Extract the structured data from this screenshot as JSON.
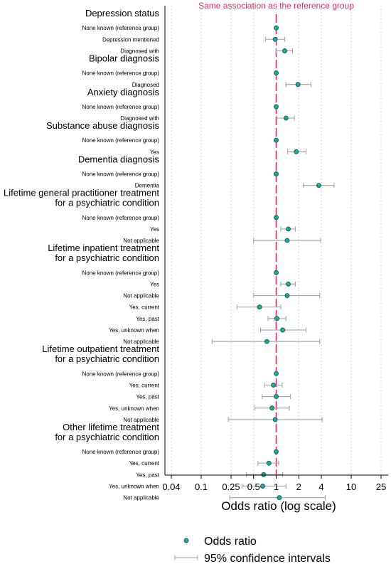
{
  "chart_data": {
    "type": "scatter",
    "orientation": "forest-plot",
    "x_scale": "log",
    "xlabel": "Odds ratio (log scale)",
    "x_ticks": [
      {
        "value": 0.04,
        "label": "0.04"
      },
      {
        "value": 0.1,
        "label": "0.1"
      },
      {
        "value": 0.25,
        "label": "0.25"
      },
      {
        "value": 0.5,
        "label": "0.5"
      },
      {
        "value": 1,
        "label": "1"
      },
      {
        "value": 2,
        "label": "2"
      },
      {
        "value": 4,
        "label": "4"
      },
      {
        "value": 10,
        "label": "10"
      },
      {
        "value": 25,
        "label": "25"
      }
    ],
    "xlim": [
      0.03,
      35
    ],
    "reference_line": {
      "value": 1,
      "label": "Same association as the reference group",
      "color": "#d6336c"
    },
    "grid": "vertical dotted",
    "legend": {
      "placement": "bottom",
      "point_label": "Odds ratio",
      "ci_label": "95% confidence intervals"
    },
    "colors": {
      "point_fill": "#1fa99a",
      "point_stroke": "#0b5f55",
      "ci": "#aaaaaa",
      "grid": "#c8c8c8"
    },
    "groups": [
      {
        "title": [
          "Depression status"
        ],
        "rows": [
          {
            "label": "None known (reference group)",
            "or": 1,
            "lo": null,
            "hi": null
          },
          {
            "label": "Depression mentioned",
            "or": 0.97,
            "lo": 0.72,
            "hi": 1.3
          },
          {
            "label": "Diagnosed with",
            "or": 1.3,
            "lo": 1.0,
            "hi": 1.65
          }
        ]
      },
      {
        "title": [
          "Bipolar diagnosis"
        ],
        "rows": [
          {
            "label": "None known (reference group)",
            "or": 1,
            "lo": null,
            "hi": null
          },
          {
            "label": "Diagnosed",
            "or": 1.95,
            "lo": 1.35,
            "hi": 2.9
          }
        ]
      },
      {
        "title": [
          "Anxiety diagnosis"
        ],
        "rows": [
          {
            "label": "None known (reference group)",
            "or": 1,
            "lo": null,
            "hi": null
          },
          {
            "label": "Diagnosed with",
            "or": 1.35,
            "lo": 1.02,
            "hi": 1.75
          }
        ]
      },
      {
        "title": [
          "Substance abuse diagnosis"
        ],
        "rows": [
          {
            "label": "None known (reference group)",
            "or": 1,
            "lo": null,
            "hi": null
          },
          {
            "label": "Yes",
            "or": 1.85,
            "lo": 1.42,
            "hi": 2.5
          }
        ]
      },
      {
        "title": [
          "Dementia diagnosis"
        ],
        "rows": [
          {
            "label": "None known (reference group)",
            "or": 1,
            "lo": null,
            "hi": null
          },
          {
            "label": "Dementia",
            "or": 3.7,
            "lo": 2.3,
            "hi": 5.9
          }
        ]
      },
      {
        "title": [
          "Lifetime general practitioner treatment",
          "for a psychiatric condition"
        ],
        "rows": [
          {
            "label": "None known (reference group)",
            "or": 1,
            "lo": null,
            "hi": null
          },
          {
            "label": "Yes",
            "or": 1.45,
            "lo": 1.15,
            "hi": 1.8
          },
          {
            "label": "Not applicable",
            "or": 1.4,
            "lo": 0.5,
            "hi": 3.9
          }
        ]
      },
      {
        "title": [
          "Lifetime inpatient treatment",
          "for a psychiatric condition"
        ],
        "rows": [
          {
            "label": "None known (reference group)",
            "or": 1,
            "lo": null,
            "hi": null
          },
          {
            "label": "Yes",
            "or": 1.45,
            "lo": 1.15,
            "hi": 1.8
          },
          {
            "label": "Not applicable",
            "or": 1.4,
            "lo": 0.5,
            "hi": 3.8
          },
          {
            "label": "Yes, current",
            "or": 0.6,
            "lo": 0.3,
            "hi": 1.15
          },
          {
            "label": "Yes, past",
            "or": 1.02,
            "lo": 0.78,
            "hi": 1.35
          },
          {
            "label": "Yes, unknown when",
            "or": 1.22,
            "lo": 0.62,
            "hi": 2.5
          },
          {
            "label": "Not applicable",
            "or": 0.75,
            "lo": 0.14,
            "hi": 3.8
          }
        ]
      },
      {
        "title": [
          "Lifetime outpatient treatment",
          "for a psychiatric condition"
        ],
        "rows": [
          {
            "label": "None known (reference group)",
            "or": 1,
            "lo": null,
            "hi": null
          },
          {
            "label": "Yes, current",
            "or": 0.92,
            "lo": 0.7,
            "hi": 1.2
          },
          {
            "label": "Yes, past",
            "or": 1.0,
            "lo": 0.65,
            "hi": 1.55
          },
          {
            "label": "Yes, unknown when",
            "or": 0.88,
            "lo": 0.52,
            "hi": 1.5
          },
          {
            "label": "Not applicable",
            "or": 0.97,
            "lo": 0.23,
            "hi": 4.1
          }
        ]
      },
      {
        "title": [
          "Other lifetime treatment",
          "for a psychiatric condition"
        ],
        "rows": [
          {
            "label": "None known (reference group)",
            "or": 1,
            "lo": null,
            "hi": null
          },
          {
            "label": "Yes, current",
            "or": 0.8,
            "lo": 0.57,
            "hi": 1.08
          },
          {
            "label": "Yes, past",
            "or": 0.68,
            "lo": 0.4,
            "hi": 1.22
          },
          {
            "label": "Yes, unknown when",
            "or": 0.66,
            "lo": 0.35,
            "hi": 1.35
          },
          {
            "label": "Not applicable",
            "or": 1.1,
            "lo": 0.24,
            "hi": 4.5
          }
        ]
      }
    ]
  }
}
